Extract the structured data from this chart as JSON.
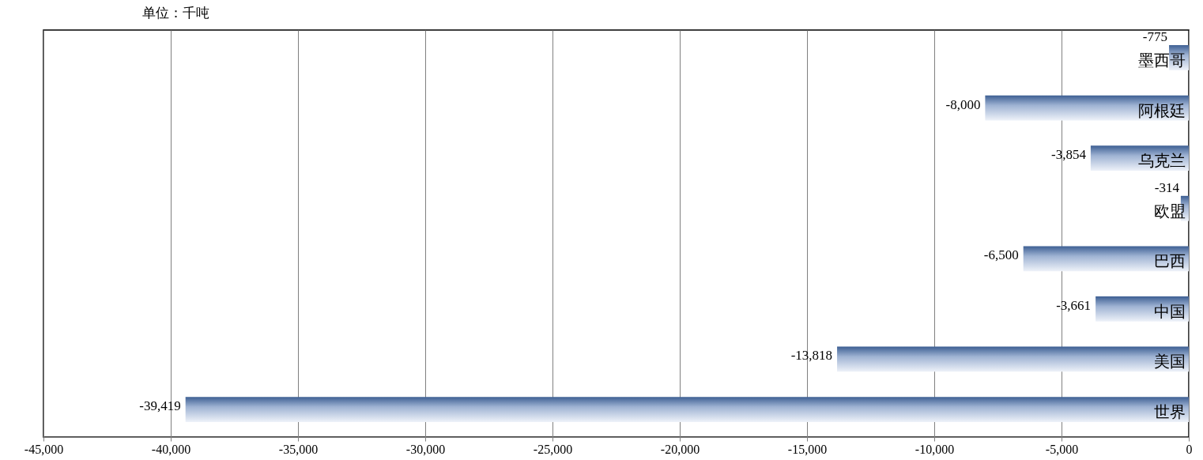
{
  "chart_data": {
    "type": "bar",
    "orientation": "horizontal",
    "categories": [
      "墨西哥",
      "阿根廷",
      "乌克兰",
      "欧盟",
      "巴西",
      "中国",
      "美国",
      "世界"
    ],
    "values": [
      -775,
      -8000,
      -3854,
      -314,
      -6500,
      -3661,
      -13818,
      -39419
    ],
    "value_labels": [
      "-775",
      "-8,000",
      "-3,854",
      "-314",
      "-6,500",
      "-3,661",
      "-13,818",
      "-39,419"
    ],
    "color": "#3d5f93",
    "xlim": [
      -45000,
      0
    ],
    "xticks": [
      {
        "value": -45000,
        "label": "-45,000"
      },
      {
        "value": -40000,
        "label": "-40,000"
      },
      {
        "value": -35000,
        "label": "-35,000"
      },
      {
        "value": -30000,
        "label": "-30,000"
      },
      {
        "value": -25000,
        "label": "-25,000"
      },
      {
        "value": -20000,
        "label": "-20,000"
      },
      {
        "value": -15000,
        "label": "-15,000"
      },
      {
        "value": -10000,
        "label": "-10,000"
      },
      {
        "value": -5000,
        "label": "-5,000"
      },
      0
    ],
    "grid": "x",
    "annotations": [
      "单位：千吨"
    ]
  }
}
